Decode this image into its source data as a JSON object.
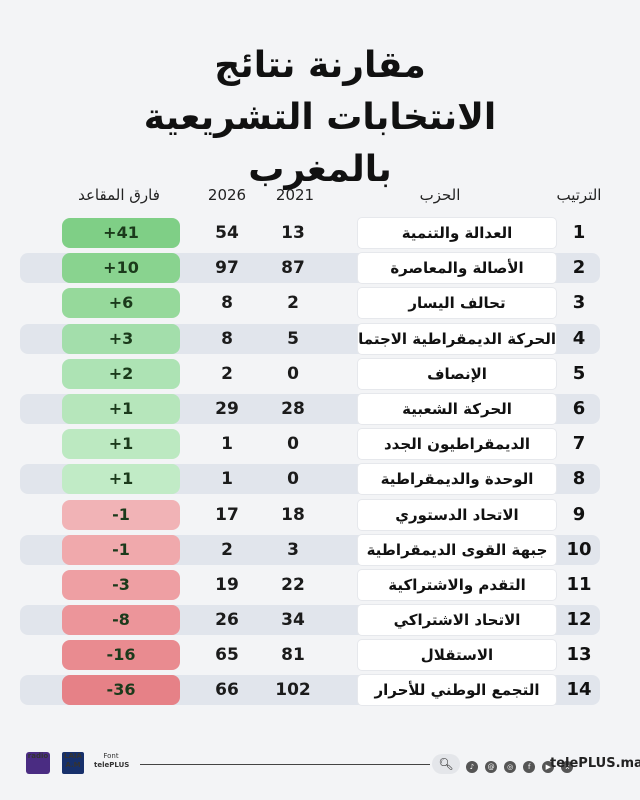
{
  "title": {
    "line1": "مقارنة نتائج",
    "line2": "الانتخابات التشريعية",
    "line3": "بالمغرب"
  },
  "headers": {
    "rank": "الترتيب",
    "party": "الحزب",
    "y2021": "2021",
    "y2026": "2026",
    "diff": "فارق المقاعد"
  },
  "rows": [
    {
      "rank": "1",
      "party": "العدالة والتنمية",
      "y2021": "13",
      "y2026": "54",
      "diff": "+41",
      "color": "#7fcf86"
    },
    {
      "rank": "2",
      "party": "الأصالة والمعاصرة",
      "y2021": "87",
      "y2026": "97",
      "diff": "+10",
      "color": "#89d38f"
    },
    {
      "rank": "3",
      "party": "تحالف اليسار",
      "y2021": "2",
      "y2026": "8",
      "diff": "+6",
      "color": "#96d99b"
    },
    {
      "rank": "4",
      "party": "الحركة الديمقراطية الاجتماعية",
      "y2021": "5",
      "y2026": "8",
      "diff": "+3",
      "color": "#a3deab"
    },
    {
      "rank": "5",
      "party": "الإنصاف",
      "y2021": "0",
      "y2026": "2",
      "diff": "+2",
      "color": "#ade3b4"
    },
    {
      "rank": "6",
      "party": "الحركة الشعبية",
      "y2021": "28",
      "y2026": "29",
      "diff": "+1",
      "color": "#b6e6bb"
    },
    {
      "rank": "7",
      "party": "الديمقراطيون الجدد",
      "y2021": "0",
      "y2026": "1",
      "diff": "+1",
      "color": "#bce9c1"
    },
    {
      "rank": "8",
      "party": "الوحدة والديمقراطية",
      "y2021": "0",
      "y2026": "1",
      "diff": "+1",
      "color": "#c1ebc6"
    },
    {
      "rank": "9",
      "party": "الاتحاد الدستوري",
      "y2021": "18",
      "y2026": "17",
      "diff": "-1",
      "color": "#f1b3b6"
    },
    {
      "rank": "10",
      "party": "جبهة القوى الديمقراطية",
      "y2021": "3",
      "y2026": "2",
      "diff": "-1",
      "color": "#f0a9ac"
    },
    {
      "rank": "11",
      "party": "التقدم والاشتراكية",
      "y2021": "22",
      "y2026": "19",
      "diff": "-3",
      "color": "#ee9fa3"
    },
    {
      "rank": "12",
      "party": "الاتحاد الاشتراكي",
      "y2021": "34",
      "y2026": "26",
      "diff": "-8",
      "color": "#ec959a"
    },
    {
      "rank": "13",
      "party": "الاستقلال",
      "y2021": "81",
      "y2026": "65",
      "diff": "-16",
      "color": "#e98b90"
    },
    {
      "rank": "14",
      "party": "التجمع الوطني للأحرار",
      "y2021": "102",
      "y2026": "66",
      "diff": "-36",
      "color": "#e68187"
    }
  ],
  "footer": {
    "logo_radio": "radio",
    "logo_laia_top": "LAIA",
    "logo_laia_bottom": "A.M",
    "logo_tele_top": "Font",
    "logo_tele_bottom": "telePLUS",
    "search_icon": "search-icon",
    "site": "telePLUS.ma"
  }
}
